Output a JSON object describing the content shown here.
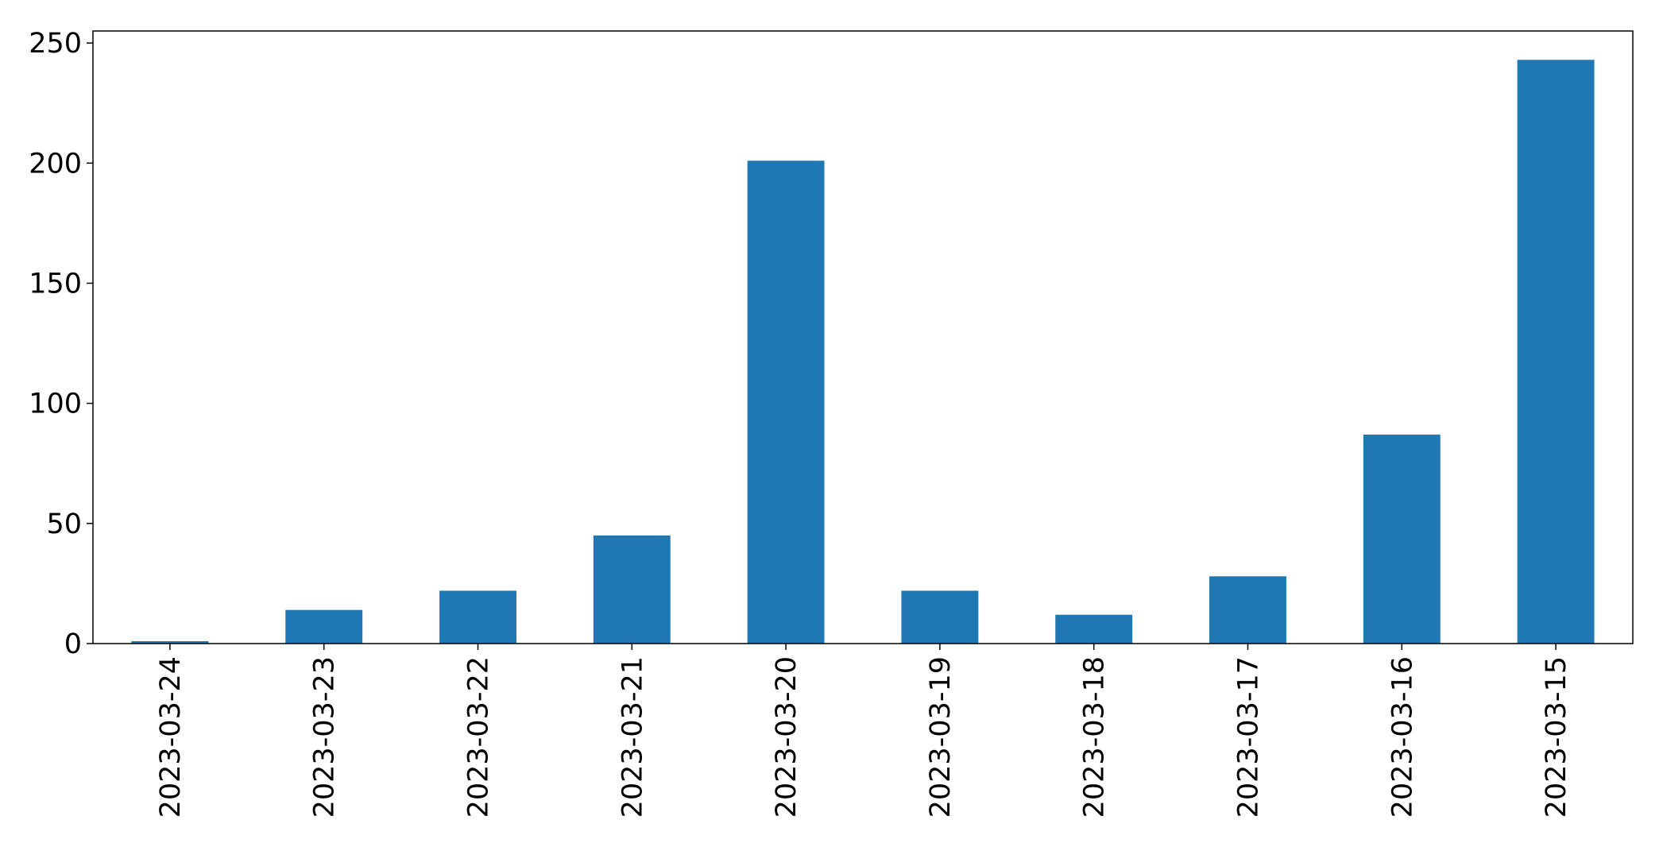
{
  "chart_data": {
    "type": "bar",
    "categories": [
      "2023-03-24",
      "2023-03-23",
      "2023-03-22",
      "2023-03-21",
      "2023-03-20",
      "2023-03-19",
      "2023-03-18",
      "2023-03-17",
      "2023-03-16",
      "2023-03-15"
    ],
    "values": [
      1,
      14,
      22,
      45,
      201,
      22,
      12,
      28,
      87,
      243
    ],
    "title": "",
    "xlabel": "",
    "ylabel": "",
    "ylim": [
      0,
      255
    ],
    "yticks": [
      0,
      50,
      100,
      150,
      200,
      250
    ],
    "grid": false,
    "legend": "none",
    "bar_color": "#1f77b4"
  }
}
